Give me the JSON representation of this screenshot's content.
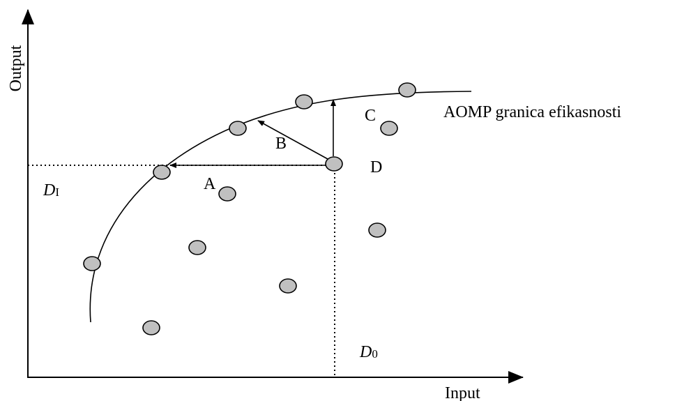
{
  "axes": {
    "x_label": "Input",
    "y_label": "Output"
  },
  "frontier": {
    "label": "AOMP granica efikasnosti"
  },
  "points": {
    "a": "A",
    "b": "B",
    "c": "C",
    "d": "D"
  },
  "projections": {
    "input_main": "D",
    "input_sub": "I",
    "output_main": "D",
    "output_sub": "0"
  },
  "colors": {
    "point_fill": "#c0c0c0",
    "stroke": "#000000"
  }
}
